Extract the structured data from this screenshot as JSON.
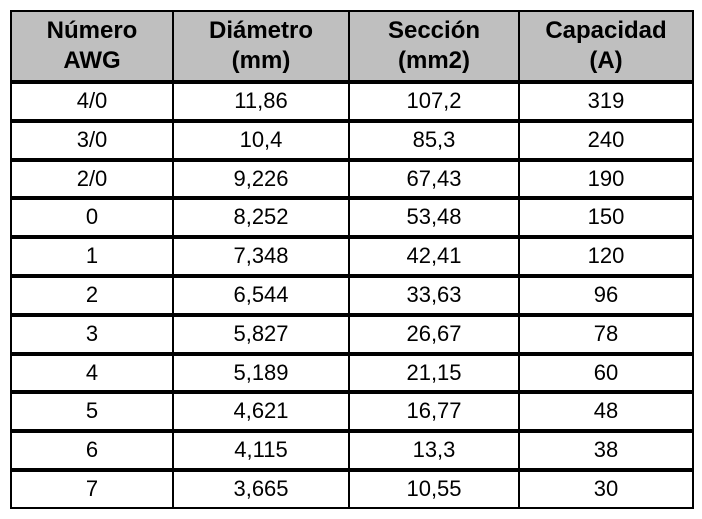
{
  "table": {
    "header_bg": "#bfbfbf",
    "border_color": "#000000",
    "columns": [
      {
        "line1": "Número",
        "line2": "AWG"
      },
      {
        "line1": "Diámetro",
        "line2": "(mm)"
      },
      {
        "line1": "Sección",
        "line2": "(mm2)"
      },
      {
        "line1": "Capacidad",
        "line2": "(A)"
      }
    ],
    "rows": [
      {
        "awg": "4/0",
        "diam": "11,86",
        "secc": "107,2",
        "cap": "319"
      },
      {
        "awg": "3/0",
        "diam": "10,4",
        "secc": "85,3",
        "cap": "240"
      },
      {
        "awg": "2/0",
        "diam": "9,226",
        "secc": "67,43",
        "cap": "190"
      },
      {
        "awg": "0",
        "diam": "8,252",
        "secc": "53,48",
        "cap": "150"
      },
      {
        "awg": "1",
        "diam": "7,348",
        "secc": "42,41",
        "cap": "120"
      },
      {
        "awg": "2",
        "diam": "6,544",
        "secc": "33,63",
        "cap": "96"
      },
      {
        "awg": "3",
        "diam": "5,827",
        "secc": "26,67",
        "cap": "78"
      },
      {
        "awg": "4",
        "diam": "5,189",
        "secc": "21,15",
        "cap": "60"
      },
      {
        "awg": "5",
        "diam": "4,621",
        "secc": "16,77",
        "cap": "48"
      },
      {
        "awg": "6",
        "diam": "4,115",
        "secc": "13,3",
        "cap": "38"
      },
      {
        "awg": "7",
        "diam": "3,665",
        "secc": "10,55",
        "cap": "30"
      }
    ]
  }
}
